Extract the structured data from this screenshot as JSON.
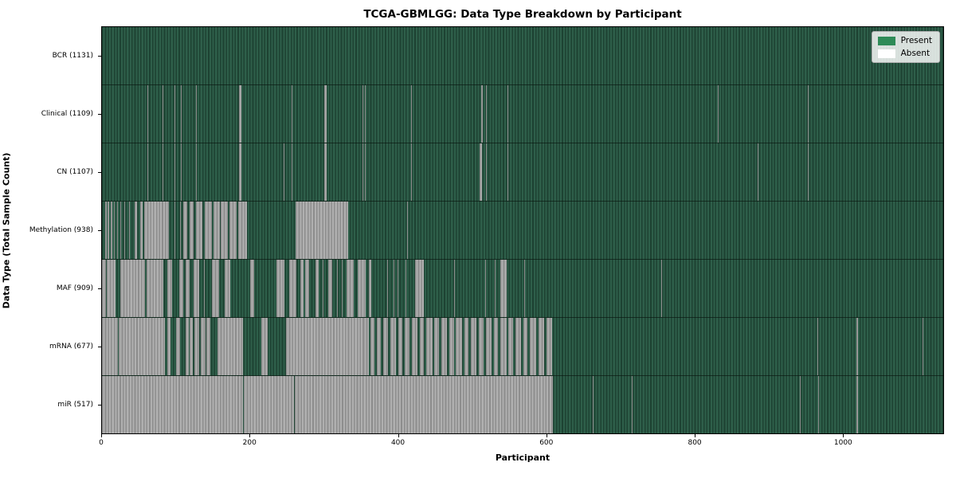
{
  "chart_data": {
    "type": "heatmap",
    "title": "TCGA-GBMLGG: Data Type Breakdown by Participant",
    "xlabel": "Participant",
    "ylabel": "Data Type (Total Sample Count)",
    "x_ticks": [
      0,
      200,
      400,
      600,
      800,
      1000
    ],
    "xlim": [
      0,
      1136
    ],
    "n_participants": 1131,
    "grid": false,
    "legend": {
      "position": "upper right",
      "entries": [
        {
          "label": "Present",
          "color": "#2e8b57"
        },
        {
          "label": "Absent",
          "color": "#ffffff"
        }
      ]
    },
    "colors": {
      "present_fill": "#2e8b57",
      "present_stripe_light": "#2e5f4a",
      "present_stripe_dark": "#1d4232",
      "absent_fill": "#ffffff",
      "absent_stripe_light": "#b0b0b0",
      "absent_stripe_dark": "#8d8d8d",
      "plot_border": "#000000"
    },
    "rows": [
      {
        "name": "BCR",
        "count": 1131,
        "label": "BCR (1131)",
        "absent_ranges": []
      },
      {
        "name": "Clinical",
        "count": 1109,
        "label": "Clinical (1109)",
        "absent_ranges": [
          [
            61,
            62
          ],
          [
            77,
            78
          ],
          [
            82,
            83
          ],
          [
            98,
            99
          ],
          [
            107,
            108
          ],
          [
            127,
            128
          ],
          [
            185,
            188
          ],
          [
            256,
            257
          ],
          [
            300,
            303
          ],
          [
            352,
            353
          ],
          [
            355,
            356
          ],
          [
            417,
            418
          ],
          [
            512,
            514
          ],
          [
            519,
            520
          ],
          [
            548,
            549
          ],
          [
            832,
            833
          ],
          [
            953,
            954
          ]
        ]
      },
      {
        "name": "CN",
        "count": 1107,
        "label": "CN (1107)",
        "absent_ranges": [
          [
            61,
            62
          ],
          [
            77,
            78
          ],
          [
            82,
            83
          ],
          [
            98,
            99
          ],
          [
            107,
            108
          ],
          [
            127,
            128
          ],
          [
            185,
            188
          ],
          [
            245,
            246
          ],
          [
            256,
            257
          ],
          [
            300,
            303
          ],
          [
            352,
            353
          ],
          [
            355,
            356
          ],
          [
            417,
            418
          ],
          [
            510,
            513
          ],
          [
            519,
            520
          ],
          [
            548,
            549
          ],
          [
            885,
            886
          ],
          [
            953,
            954
          ]
        ]
      },
      {
        "name": "Methylation",
        "count": 938,
        "label": "Methylation (938)",
        "absent_ranges": [
          [
            4,
            6
          ],
          [
            8,
            10
          ],
          [
            12,
            14
          ],
          [
            16,
            17
          ],
          [
            20,
            21
          ],
          [
            25,
            26
          ],
          [
            30,
            31
          ],
          [
            37,
            38
          ],
          [
            44,
            47
          ],
          [
            52,
            55
          ],
          [
            57,
            90
          ],
          [
            98,
            99
          ],
          [
            105,
            106
          ],
          [
            110,
            115
          ],
          [
            118,
            124
          ],
          [
            127,
            136
          ],
          [
            139,
            148
          ],
          [
            151,
            159
          ],
          [
            160,
            170
          ],
          [
            172,
            182
          ],
          [
            184,
            196
          ],
          [
            261,
            332
          ],
          [
            412,
            413
          ]
        ]
      },
      {
        "name": "MAF",
        "count": 909,
        "label": "MAF (909)",
        "absent_ranges": [
          [
            0,
            5
          ],
          [
            6,
            18
          ],
          [
            25,
            58
          ],
          [
            60,
            83
          ],
          [
            88,
            95
          ],
          [
            104,
            110
          ],
          [
            113,
            118
          ],
          [
            124,
            131
          ],
          [
            138,
            139
          ],
          [
            148,
            158
          ],
          [
            166,
            173
          ],
          [
            191,
            192
          ],
          [
            200,
            205
          ],
          [
            236,
            246
          ],
          [
            253,
            263
          ],
          [
            268,
            272
          ],
          [
            274,
            280
          ],
          [
            288,
            293
          ],
          [
            298,
            299
          ],
          [
            306,
            311
          ],
          [
            317,
            318
          ],
          [
            324,
            325
          ],
          [
            330,
            340
          ],
          [
            345,
            356
          ],
          [
            360,
            364
          ],
          [
            385,
            386
          ],
          [
            390,
            391
          ],
          [
            394,
            395
          ],
          [
            399,
            400
          ],
          [
            404,
            405
          ],
          [
            410,
            411
          ],
          [
            423,
            435
          ],
          [
            476,
            477
          ],
          [
            517,
            518
          ],
          [
            530,
            531
          ],
          [
            538,
            547
          ],
          [
            570,
            571
          ],
          [
            755,
            756
          ]
        ]
      },
      {
        "name": "mRNA",
        "count": 677,
        "label": "mRNA (677)",
        "absent_ranges": [
          [
            0,
            22
          ],
          [
            23,
            85
          ],
          [
            88,
            92
          ],
          [
            100,
            105
          ],
          [
            113,
            117
          ],
          [
            118,
            123
          ],
          [
            125,
            131
          ],
          [
            133,
            140
          ],
          [
            141,
            146
          ],
          [
            156,
            190
          ],
          [
            215,
            224
          ],
          [
            248,
            353
          ],
          [
            353,
            360
          ],
          [
            362,
            368
          ],
          [
            371,
            377
          ],
          [
            380,
            386
          ],
          [
            389,
            397
          ],
          [
            400,
            406
          ],
          [
            409,
            415
          ],
          [
            418,
            426
          ],
          [
            429,
            435
          ],
          [
            438,
            446
          ],
          [
            449,
            455
          ],
          [
            458,
            466
          ],
          [
            469,
            475
          ],
          [
            478,
            486
          ],
          [
            489,
            495
          ],
          [
            498,
            506
          ],
          [
            509,
            515
          ],
          [
            518,
            526
          ],
          [
            529,
            535
          ],
          [
            538,
            546
          ],
          [
            549,
            555
          ],
          [
            558,
            566
          ],
          [
            569,
            575
          ],
          [
            578,
            586
          ],
          [
            589,
            597
          ],
          [
            600,
            608
          ],
          [
            915,
            916
          ],
          [
            966,
            967
          ],
          [
            1019,
            1021
          ],
          [
            1108,
            1109
          ]
        ]
      },
      {
        "name": "miR",
        "count": 517,
        "label": "miR (517)",
        "absent_ranges": [
          [
            0,
            190
          ],
          [
            191,
            259
          ],
          [
            260,
            609
          ],
          [
            663,
            664
          ],
          [
            715,
            716
          ],
          [
            942,
            943
          ],
          [
            967,
            968
          ],
          [
            1001,
            1002
          ],
          [
            1019,
            1021
          ]
        ]
      }
    ]
  }
}
